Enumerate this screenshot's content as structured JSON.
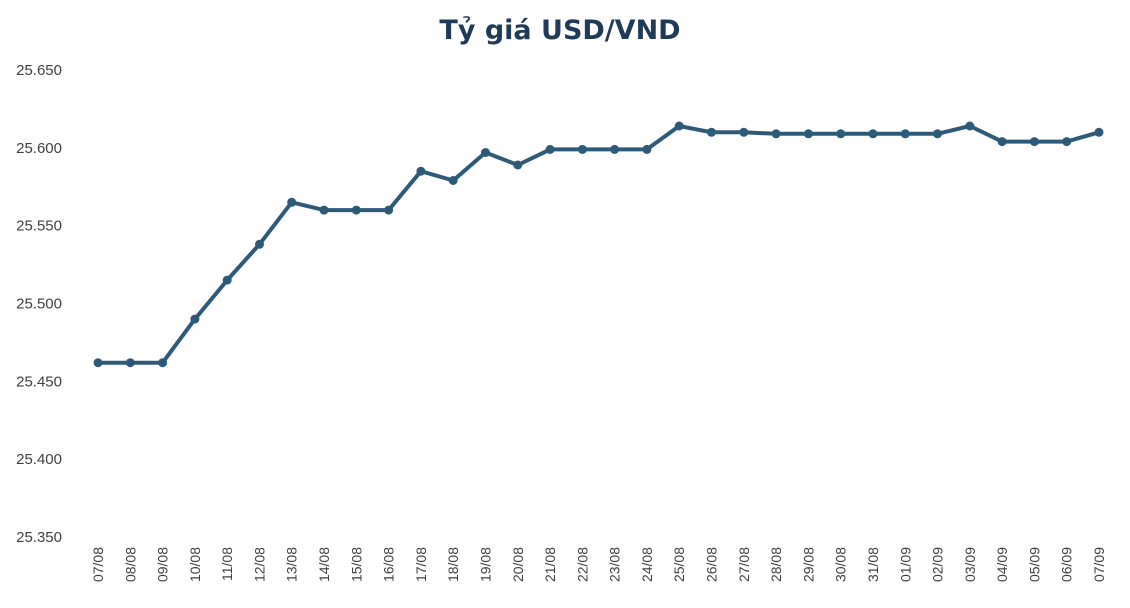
{
  "chart_data": {
    "type": "line",
    "title": "Tỷ giá USD/VND",
    "xlabel": "",
    "ylabel": "",
    "ylim": [
      25350,
      25650
    ],
    "yticks": [
      25350,
      25400,
      25450,
      25500,
      25550,
      25600,
      25650
    ],
    "ytick_labels": [
      "25.350",
      "25.400",
      "25.450",
      "25.500",
      "25.550",
      "25.600",
      "25.650"
    ],
    "grid": false,
    "legend": "none",
    "categories": [
      "07/08",
      "08/08",
      "09/08",
      "10/08",
      "11/08",
      "12/08",
      "13/08",
      "14/08",
      "15/08",
      "16/08",
      "17/08",
      "18/08",
      "19/08",
      "20/08",
      "21/08",
      "22/08",
      "23/08",
      "24/08",
      "25/08",
      "26/08",
      "27/08",
      "28/08",
      "29/08",
      "30/08",
      "31/08",
      "01/09",
      "02/09",
      "03/09",
      "04/09",
      "05/09",
      "06/09",
      "07/09"
    ],
    "series": [
      {
        "values": [
          25462,
          25462,
          25462,
          25490,
          25515,
          25538,
          25565,
          25560,
          25560,
          25560,
          25585,
          25579,
          25597,
          25589,
          25599,
          25599,
          25599,
          25599,
          25614,
          25610,
          25610,
          25609,
          25609,
          25609,
          25609,
          25609,
          25609,
          25614,
          25604,
          25604,
          25604,
          25610
        ],
        "color": "#2e5a7a"
      }
    ]
  }
}
